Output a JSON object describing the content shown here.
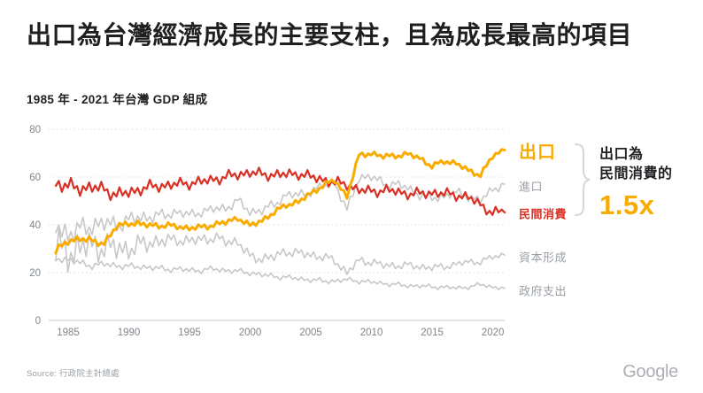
{
  "title": "出口為台灣經濟成長的主要支柱，且為成長最高的項目",
  "subtitle": "1985 年 - 2021 年台灣 GDP 組成",
  "source": "Source: 行政院主計總處",
  "brand": "Google",
  "annotation": {
    "line1": "出口為",
    "line2": "民間消費的",
    "value": "1.5x",
    "value_color": "#f9ab00"
  },
  "colors": {
    "accent_yellow": "#f9ab00",
    "accent_red": "#d93025",
    "line_gray": "#c7c7c7",
    "label_gray": "#9aa0a6",
    "grid": "#dcdcdc",
    "axis": "#d0d3d6",
    "tick_text": "#80868b",
    "title_text": "#1f1f1f"
  },
  "chart_data": {
    "type": "line",
    "title": "1985 年 - 2021 年台灣 GDP 組成",
    "x_start": 1985,
    "x_end": 2022,
    "x_ticks": [
      1985,
      1990,
      1995,
      2000,
      2005,
      2010,
      2015,
      2020
    ],
    "ylim": [
      0,
      80
    ],
    "y_ticks": [
      0,
      20,
      40,
      60,
      80
    ],
    "grid": "dotted-horizontal",
    "legend_position": "right-of-lines",
    "series_note": "values are annual anchors for years 1985-2022 (percent of GDP, quarterly seasonal oscillation of roughly +/- amp around anchors)",
    "series": [
      {
        "name": "出口",
        "color": "#f9ab00",
        "width": 3,
        "label_color": "#f9ab00",
        "label_size": "large",
        "label_bold": true,
        "amp": [
          1.5,
          1.2,
          1.1
        ],
        "values": [
          29,
          33,
          34.5,
          33,
          32.5,
          39,
          41,
          40,
          40,
          39.5,
          39.5,
          38.5,
          39,
          40,
          41,
          43,
          39.5,
          42,
          45,
          48.5,
          49.5,
          53,
          56.5,
          58.5,
          52,
          69,
          70,
          68.5,
          69,
          69.5,
          68,
          64.5,
          66.5,
          66,
          62.5,
          61,
          68.5,
          71.5
        ]
      },
      {
        "name": "進口",
        "color": "#c7c7c7",
        "width": 1.6,
        "label_color": "#9aa0a6",
        "label_size": "small",
        "label_bold": false,
        "amp": [
          5,
          2,
          1.8
        ],
        "values": [
          40,
          36,
          38,
          40,
          40.5,
          40,
          42,
          43,
          43.5,
          44,
          45.5,
          44,
          45.5,
          46.5,
          47,
          50,
          45.5,
          46,
          48.5,
          52.5,
          52.5,
          54,
          56,
          57.5,
          46,
          60,
          60,
          57.5,
          57,
          55.5,
          52.5,
          51,
          52,
          53.5,
          52,
          50,
          55,
          57
        ]
      },
      {
        "name": "民間消費",
        "color": "#d93025",
        "width": 2.2,
        "label_color": "#d93025",
        "label_size": "small",
        "label_bold": true,
        "amp": [
          3,
          2.2,
          2
        ],
        "values": [
          57.5,
          56,
          55.5,
          55.5,
          55,
          52.5,
          53.5,
          55,
          56,
          56.5,
          57,
          57.5,
          58,
          59,
          60,
          61,
          62,
          61,
          61,
          61,
          61.5,
          60,
          59,
          57.5,
          57,
          54.5,
          54,
          54.5,
          54,
          53,
          53,
          53.5,
          53,
          52.5,
          51.5,
          48.5,
          45,
          45.5
        ]
      },
      {
        "name": "資本形成",
        "color": "#c7c7c7",
        "width": 1.6,
        "label_color": "#9aa0a6",
        "label_size": "small",
        "label_bold": false,
        "amp": [
          8,
          2.5,
          1.2
        ],
        "values": [
          30,
          28,
          31,
          31,
          31,
          30,
          30,
          31.5,
          33,
          33,
          34,
          33,
          34,
          34.5,
          33,
          33,
          26.5,
          26,
          26.5,
          29,
          28,
          27.5,
          26.5,
          25,
          20,
          25,
          24.5,
          23,
          23,
          23,
          22.5,
          22,
          22.5,
          23.5,
          24.5,
          24.5,
          26.5,
          27.5
        ]
      },
      {
        "name": "政府支出",
        "color": "#c7c7c7",
        "width": 1.6,
        "label_color": "#9aa0a6",
        "label_size": "small",
        "label_bold": false,
        "amp": [
          1.5,
          1.2,
          0.8
        ],
        "values": [
          26,
          25.5,
          24,
          23,
          23.5,
          23,
          22.5,
          22.5,
          22,
          21.5,
          21.5,
          21,
          21,
          21.5,
          21,
          20.5,
          20,
          19,
          18.5,
          18,
          17.5,
          17,
          16.5,
          16.5,
          17,
          16.5,
          16,
          15.5,
          15,
          14.5,
          14.5,
          14,
          14,
          13.5,
          14,
          15,
          14,
          13.5
        ]
      }
    ]
  }
}
